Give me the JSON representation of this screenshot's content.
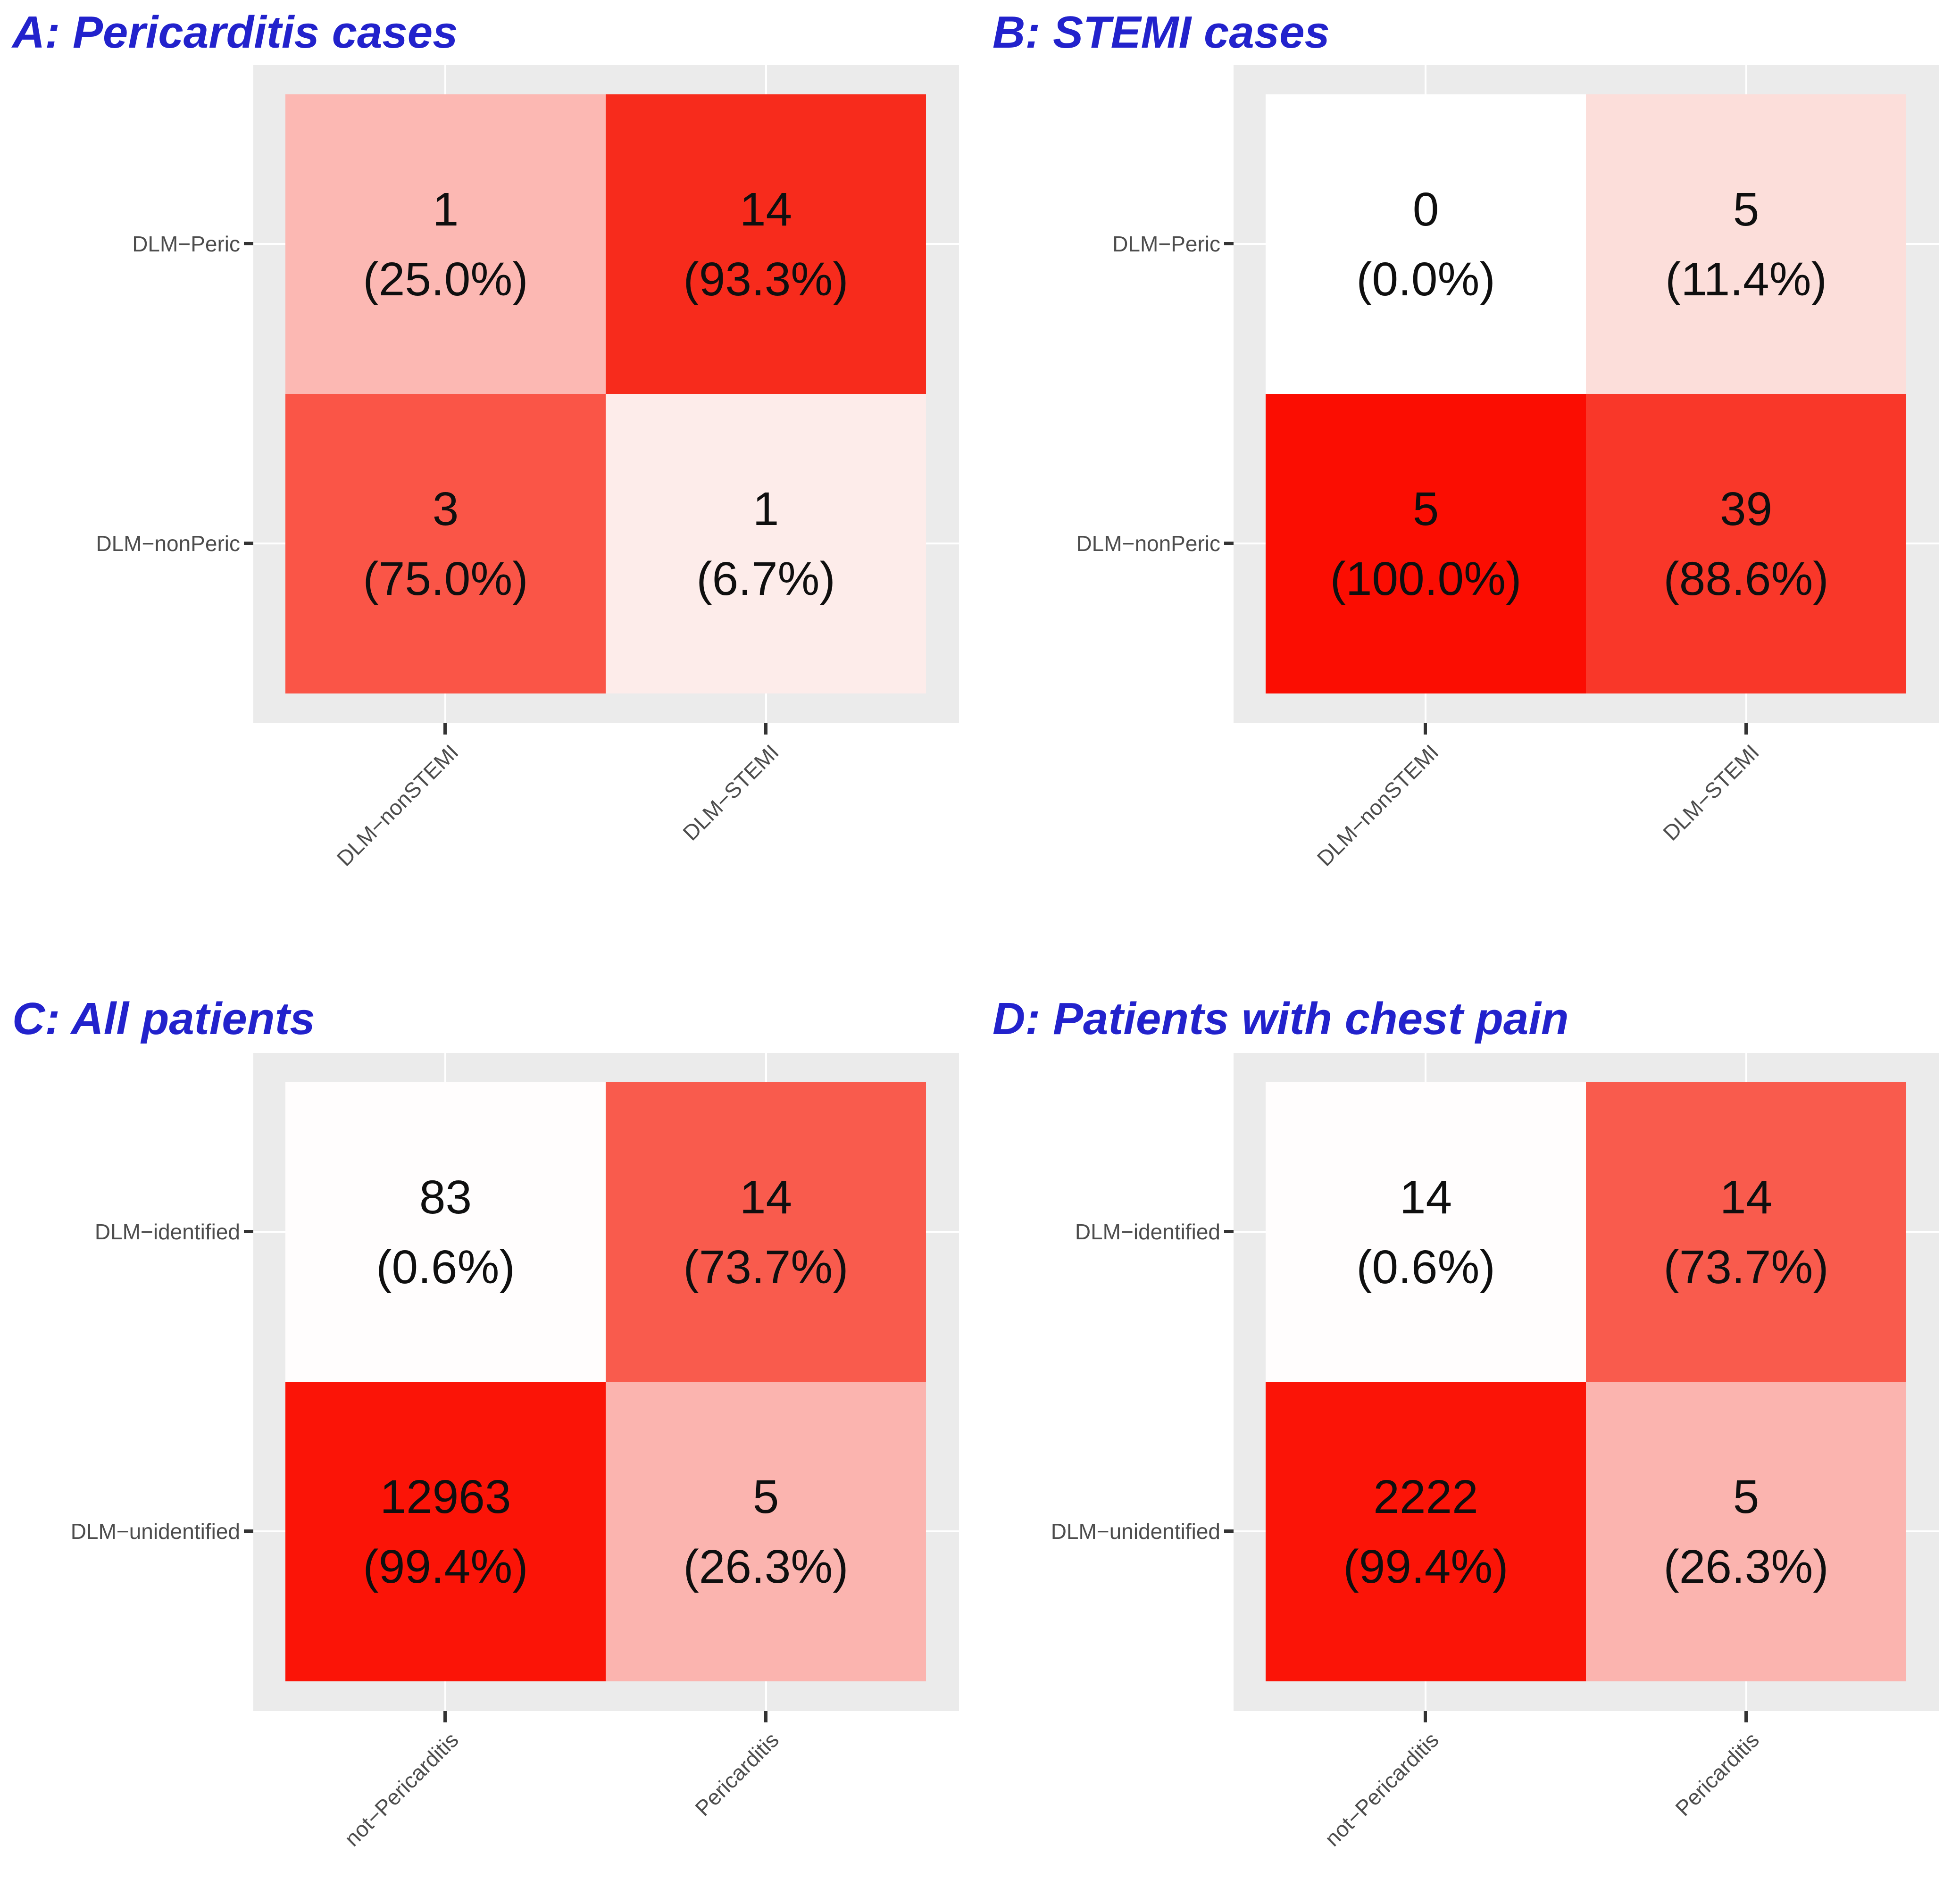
{
  "colors": {
    "title_blue": "#2222CC",
    "panel_bg": "#EBEBEB",
    "gridline": "#FFFFFF",
    "axis_text": "#4D4D4D",
    "tick": "#333333",
    "cell_text": "#0F0F0F"
  },
  "panels": [
    {
      "id": "A",
      "title": "A: Pericarditis cases",
      "y_labels": [
        "DLM−Peric",
        "DLM−nonPeric"
      ],
      "x_labels": [
        "DLM−nonSTEMI",
        "DLM−STEMI"
      ],
      "cells": [
        {
          "count": "1",
          "pct": "(25.0%)",
          "fill": "#FCB8B3"
        },
        {
          "count": "14",
          "pct": "(93.3%)",
          "fill": "#F72B1C"
        },
        {
          "count": "3",
          "pct": "(75.0%)",
          "fill": "#FA5547"
        },
        {
          "count": "1",
          "pct": "(6.7%)",
          "fill": "#FDECEA"
        }
      ]
    },
    {
      "id": "B",
      "title": "B: STEMI cases",
      "y_labels": [
        "DLM−Peric",
        "DLM−nonPeric"
      ],
      "x_labels": [
        "DLM−nonSTEMI",
        "DLM−STEMI"
      ],
      "cells": [
        {
          "count": "0",
          "pct": "(0.0%)",
          "fill": "#FFFFFF"
        },
        {
          "count": "5",
          "pct": "(11.4%)",
          "fill": "#FCDEDA"
        },
        {
          "count": "5",
          "pct": "(100.0%)",
          "fill": "#FB0D02"
        },
        {
          "count": "39",
          "pct": "(88.6%)",
          "fill": "#F93729"
        }
      ]
    },
    {
      "id": "C",
      "title": "C: All patients",
      "y_labels": [
        "DLM−identified",
        "DLM−unidentified"
      ],
      "x_labels": [
        "not−Pericarditis",
        "Pericarditis"
      ],
      "cells": [
        {
          "count": "83",
          "pct": "(0.6%)",
          "fill": "#FFFDFD"
        },
        {
          "count": "14",
          "pct": "(73.7%)",
          "fill": "#F95B4D"
        },
        {
          "count": "12963",
          "pct": "(99.4%)",
          "fill": "#FB1407"
        },
        {
          "count": "5",
          "pct": "(26.3%)",
          "fill": "#FBB4AF"
        }
      ]
    },
    {
      "id": "D",
      "title": "D: Patients with chest pain",
      "y_labels": [
        "DLM−identified",
        "DLM−unidentified"
      ],
      "x_labels": [
        "not−Pericarditis",
        "Pericarditis"
      ],
      "cells": [
        {
          "count": "14",
          "pct": "(0.6%)",
          "fill": "#FFFDFD"
        },
        {
          "count": "14",
          "pct": "(73.7%)",
          "fill": "#F95B4D"
        },
        {
          "count": "2222",
          "pct": "(99.4%)",
          "fill": "#FB1407"
        },
        {
          "count": "5",
          "pct": "(26.3%)",
          "fill": "#FBB4AF"
        }
      ]
    }
  ],
  "chart_data": [
    {
      "type": "heatmap",
      "title": "A: Pericarditis cases",
      "x_categories": [
        "DLM−nonSTEMI",
        "DLM−STEMI"
      ],
      "y_categories": [
        "DLM−Peric",
        "DLM−nonPeric"
      ],
      "values": [
        [
          1,
          14
        ],
        [
          3,
          1
        ]
      ],
      "percent": [
        [
          25.0,
          93.3
        ],
        [
          75.0,
          6.7
        ]
      ],
      "colorscale": "white-to-red by column percentage",
      "legend": "none",
      "grid": "white major gridlines on gray panel"
    },
    {
      "type": "heatmap",
      "title": "B: STEMI cases",
      "x_categories": [
        "DLM−nonSTEMI",
        "DLM−STEMI"
      ],
      "y_categories": [
        "DLM−Peric",
        "DLM−nonPeric"
      ],
      "values": [
        [
          0,
          5
        ],
        [
          5,
          39
        ]
      ],
      "percent": [
        [
          0.0,
          11.4
        ],
        [
          100.0,
          88.6
        ]
      ],
      "colorscale": "white-to-red by column percentage",
      "legend": "none",
      "grid": "white major gridlines on gray panel"
    },
    {
      "type": "heatmap",
      "title": "C: All patients",
      "x_categories": [
        "not−Pericarditis",
        "Pericarditis"
      ],
      "y_categories": [
        "DLM−identified",
        "DLM−unidentified"
      ],
      "values": [
        [
          83,
          14
        ],
        [
          12963,
          5
        ]
      ],
      "percent": [
        [
          0.6,
          73.7
        ],
        [
          99.4,
          26.3
        ]
      ],
      "colorscale": "white-to-red by column percentage",
      "legend": "none",
      "grid": "white major gridlines on gray panel"
    },
    {
      "type": "heatmap",
      "title": "D: Patients with chest pain",
      "x_categories": [
        "not−Pericarditis",
        "Pericarditis"
      ],
      "y_categories": [
        "DLM−identified",
        "DLM−unidentified"
      ],
      "values": [
        [
          14,
          14
        ],
        [
          2222,
          5
        ]
      ],
      "percent": [
        [
          0.6,
          73.7
        ],
        [
          99.4,
          26.3
        ]
      ],
      "colorscale": "white-to-red by column percentage",
      "legend": "none",
      "grid": "white major gridlines on gray panel"
    }
  ]
}
